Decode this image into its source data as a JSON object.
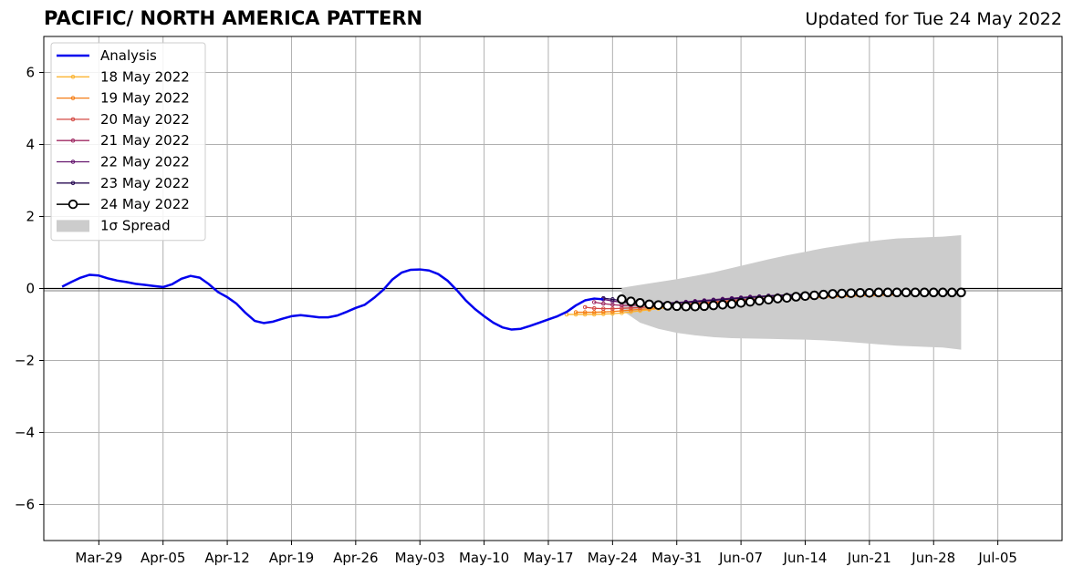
{
  "chart_data": {
    "type": "line",
    "title": "PACIFIC/ NORTH AMERICA PATTERN",
    "subtitle": "Updated for Tue 24 May 2022",
    "xlabel": "",
    "ylabel": "",
    "ylim": [
      -7,
      7
    ],
    "xlim": [
      "2022-03-23",
      "2022-07-12"
    ],
    "yticks": [
      -6,
      -4,
      -2,
      0,
      2,
      4,
      6
    ],
    "ytick_labels": [
      "−6",
      "−4",
      "−2",
      "0",
      "2",
      "4",
      "6"
    ],
    "xticks": [
      "2022-03-29",
      "2022-04-05",
      "2022-04-12",
      "2022-04-19",
      "2022-04-26",
      "2022-05-03",
      "2022-05-10",
      "2022-05-17",
      "2022-05-24",
      "2022-05-31",
      "2022-06-07",
      "2022-06-14",
      "2022-06-21",
      "2022-06-28",
      "2022-07-05"
    ],
    "xtick_labels": [
      "Mar-29",
      "Apr-05",
      "Apr-12",
      "Apr-19",
      "Apr-26",
      "May-03",
      "May-10",
      "May-17",
      "May-24",
      "May-31",
      "Jun-07",
      "Jun-14",
      "Jun-21",
      "Jun-28",
      "Jul-05"
    ],
    "grid": true,
    "legend_position": "top-left",
    "analysis": {
      "name": "Analysis",
      "color": "#0000ee",
      "x": [
        "2022-03-25",
        "2022-03-26",
        "2022-03-27",
        "2022-03-28",
        "2022-03-29",
        "2022-03-30",
        "2022-03-31",
        "2022-04-01",
        "2022-04-02",
        "2022-04-03",
        "2022-04-04",
        "2022-04-05",
        "2022-04-06",
        "2022-04-07",
        "2022-04-08",
        "2022-04-09",
        "2022-04-10",
        "2022-04-11",
        "2022-04-12",
        "2022-04-13",
        "2022-04-14",
        "2022-04-15",
        "2022-04-16",
        "2022-04-17",
        "2022-04-18",
        "2022-04-19",
        "2022-04-20",
        "2022-04-21",
        "2022-04-22",
        "2022-04-23",
        "2022-04-24",
        "2022-04-25",
        "2022-04-26",
        "2022-04-27",
        "2022-04-28",
        "2022-04-29",
        "2022-04-30",
        "2022-05-01",
        "2022-05-02",
        "2022-05-03",
        "2022-05-04",
        "2022-05-05",
        "2022-05-06",
        "2022-05-07",
        "2022-05-08",
        "2022-05-09",
        "2022-05-10",
        "2022-05-11",
        "2022-05-12",
        "2022-05-13",
        "2022-05-14",
        "2022-05-15",
        "2022-05-16",
        "2022-05-17",
        "2022-05-18",
        "2022-05-19",
        "2022-05-20",
        "2022-05-21",
        "2022-05-22",
        "2022-05-23"
      ],
      "y": [
        0.05,
        0.18,
        0.3,
        0.38,
        0.36,
        0.28,
        0.22,
        0.18,
        0.13,
        0.1,
        0.07,
        0.04,
        0.12,
        0.27,
        0.35,
        0.3,
        0.12,
        -0.1,
        -0.24,
        -0.42,
        -0.68,
        -0.9,
        -0.96,
        -0.92,
        -0.84,
        -0.77,
        -0.74,
        -0.77,
        -0.8,
        -0.8,
        -0.75,
        -0.65,
        -0.54,
        -0.45,
        -0.26,
        -0.04,
        0.25,
        0.44,
        0.52,
        0.53,
        0.5,
        0.4,
        0.22,
        -0.04,
        -0.33,
        -0.57,
        -0.77,
        -0.95,
        -1.08,
        -1.14,
        -1.12,
        -1.04,
        -0.95,
        -0.86,
        -0.77,
        -0.65,
        -0.47,
        -0.33,
        -0.28,
        -0.3
      ]
    },
    "forecasts": [
      {
        "name": "18 May 2022",
        "color": "#fbb432",
        "start": "2022-05-19",
        "y": [
          -0.72,
          -0.72,
          -0.72,
          -0.72,
          -0.71,
          -0.7,
          -0.68,
          -0.65,
          -0.62,
          -0.59,
          -0.56,
          -0.53,
          -0.5,
          -0.47,
          -0.45,
          -0.43,
          -0.41,
          -0.39,
          -0.37,
          -0.35,
          -0.34,
          -0.32,
          -0.31,
          -0.3,
          -0.28,
          -0.27,
          -0.26,
          -0.25,
          -0.24,
          -0.23,
          -0.22,
          -0.21,
          -0.2,
          -0.2,
          -0.19,
          -0.18
        ]
      },
      {
        "name": "19 May 2022",
        "color": "#f57d15",
        "start": "2022-05-20",
        "y": [
          -0.66,
          -0.66,
          -0.66,
          -0.65,
          -0.64,
          -0.62,
          -0.6,
          -0.58,
          -0.56,
          -0.53,
          -0.51,
          -0.48,
          -0.46,
          -0.44,
          -0.42,
          -0.4,
          -0.38,
          -0.36,
          -0.35,
          -0.33,
          -0.32,
          -0.31,
          -0.29,
          -0.28,
          -0.27,
          -0.26,
          -0.25,
          -0.24,
          -0.23,
          -0.22,
          -0.21,
          -0.2,
          -0.2,
          -0.19,
          -0.18,
          -0.18
        ]
      },
      {
        "name": "20 May 2022",
        "color": "#d44842",
        "start": "2022-05-21",
        "y": [
          -0.52,
          -0.55,
          -0.56,
          -0.56,
          -0.55,
          -0.54,
          -0.53,
          -0.51,
          -0.49,
          -0.47,
          -0.45,
          -0.43,
          -0.41,
          -0.39,
          -0.37,
          -0.35,
          -0.33,
          -0.31,
          -0.3,
          -0.28,
          -0.27,
          -0.25,
          -0.24,
          -0.22,
          -0.21,
          -0.2,
          -0.19,
          -0.18,
          -0.17,
          -0.16,
          -0.15,
          -0.15,
          -0.14,
          -0.13
        ]
      },
      {
        "name": "21 May 2022",
        "color": "#9f2a63",
        "start": "2022-05-22",
        "y": [
          -0.38,
          -0.42,
          -0.45,
          -0.47,
          -0.47,
          -0.46,
          -0.45,
          -0.44,
          -0.42,
          -0.4,
          -0.38,
          -0.36,
          -0.34,
          -0.32,
          -0.3,
          -0.28,
          -0.26,
          -0.25,
          -0.23,
          -0.22,
          -0.21,
          -0.19,
          -0.18,
          -0.17,
          -0.16,
          -0.15,
          -0.15,
          -0.14,
          -0.13,
          -0.13,
          -0.12,
          -0.12,
          -0.12,
          -0.11
        ]
      },
      {
        "name": "22 May 2022",
        "color": "#65156e",
        "start": "2022-05-23",
        "y": [
          -0.3,
          -0.35,
          -0.38,
          -0.4,
          -0.41,
          -0.41,
          -0.41,
          -0.4,
          -0.39,
          -0.37,
          -0.35,
          -0.33,
          -0.31,
          -0.29,
          -0.27,
          -0.25,
          -0.23,
          -0.22,
          -0.2,
          -0.19,
          -0.18,
          -0.17,
          -0.16,
          -0.15,
          -0.14,
          -0.13,
          -0.13,
          -0.12,
          -0.12,
          -0.11,
          -0.11,
          -0.11,
          -0.1,
          -0.1
        ]
      },
      {
        "name": "23 May 2022",
        "color": "#280b53",
        "start": "2022-05-23",
        "y": [
          -0.27,
          -0.3,
          -0.34,
          -0.37,
          -0.39,
          -0.4,
          -0.41,
          -0.41,
          -0.4,
          -0.39,
          -0.37,
          -0.35,
          -0.33,
          -0.31,
          -0.29,
          -0.27,
          -0.25,
          -0.23,
          -0.21,
          -0.2,
          -0.18,
          -0.17,
          -0.16,
          -0.15,
          -0.14,
          -0.13,
          -0.12,
          -0.12,
          -0.11,
          -0.11,
          -0.1,
          -0.1,
          -0.1,
          -0.1,
          -0.1
        ]
      }
    ],
    "current_forecast": {
      "name": "24 May 2022",
      "color": "#000000",
      "start": "2022-05-25",
      "y": [
        -0.3,
        -0.36,
        -0.4,
        -0.44,
        -0.46,
        -0.48,
        -0.49,
        -0.5,
        -0.5,
        -0.49,
        -0.47,
        -0.45,
        -0.43,
        -0.4,
        -0.37,
        -0.34,
        -0.31,
        -0.28,
        -0.26,
        -0.23,
        -0.21,
        -0.19,
        -0.17,
        -0.15,
        -0.14,
        -0.13,
        -0.12,
        -0.12,
        -0.11,
        -0.11,
        -0.11,
        -0.11,
        -0.11,
        -0.11,
        -0.11,
        -0.11,
        -0.11,
        -0.11
      ]
    },
    "spread": {
      "name": "1σ Spread",
      "color": "#cccccc",
      "x": [
        "2022-05-25",
        "2022-05-27",
        "2022-05-29",
        "2022-05-31",
        "2022-06-02",
        "2022-06-04",
        "2022-06-06",
        "2022-06-08",
        "2022-06-10",
        "2022-06-12",
        "2022-06-14",
        "2022-06-16",
        "2022-06-18",
        "2022-06-20",
        "2022-06-22",
        "2022-06-24",
        "2022-06-29",
        "2022-07-01"
      ],
      "upper": [
        0.02,
        0.1,
        0.18,
        0.26,
        0.35,
        0.45,
        0.57,
        0.69,
        0.81,
        0.92,
        1.02,
        1.12,
        1.2,
        1.28,
        1.34,
        1.39,
        1.44,
        1.48
      ],
      "lower": [
        -0.6,
        -0.95,
        -1.12,
        -1.23,
        -1.3,
        -1.35,
        -1.38,
        -1.39,
        -1.4,
        -1.41,
        -1.42,
        -1.44,
        -1.47,
        -1.51,
        -1.55,
        -1.59,
        -1.64,
        -1.7
      ]
    }
  }
}
